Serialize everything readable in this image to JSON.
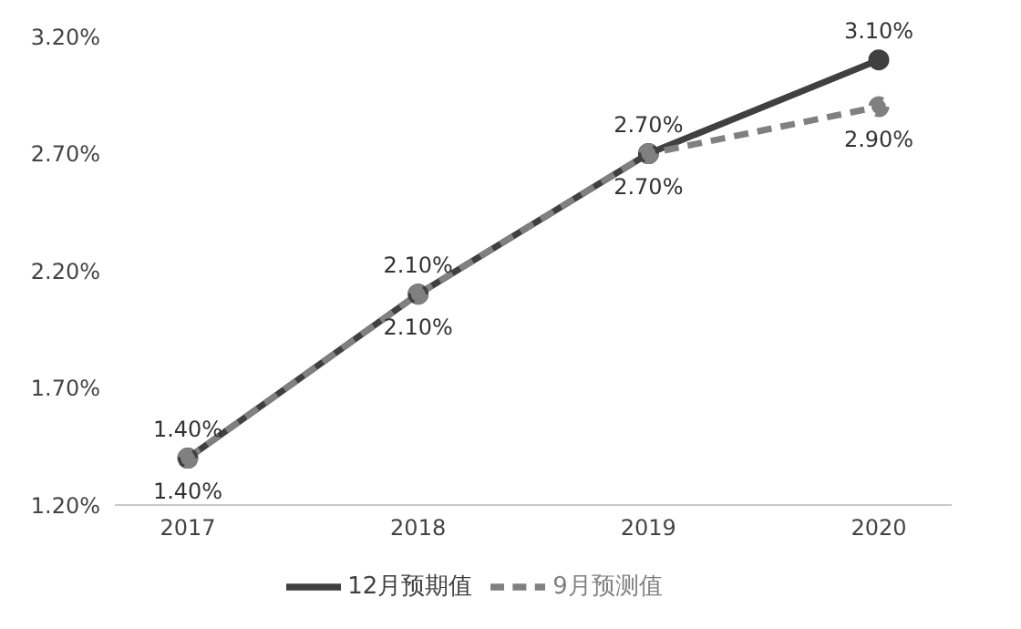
{
  "chart_data": {
    "type": "line",
    "categories": [
      "2017",
      "2018",
      "2019",
      "2020"
    ],
    "ylim": [
      1.2,
      3.2
    ],
    "yticks": [
      {
        "value": 1.2,
        "label": "1.20%"
      },
      {
        "value": 1.7,
        "label": "1.70%"
      },
      {
        "value": 2.2,
        "label": "2.20%"
      },
      {
        "value": 2.7,
        "label": "2.70%"
      },
      {
        "value": 3.2,
        "label": "3.20%"
      }
    ],
    "series": [
      {
        "name": "12月预期值",
        "color": "#404040",
        "values": [
          1.4,
          2.1,
          2.7,
          3.1
        ],
        "value_labels": [
          "1.40%",
          "2.10%",
          "2.70%",
          "3.10%"
        ],
        "line_style": "solid"
      },
      {
        "name": "9月预测值",
        "color": "#808080",
        "values": [
          1.4,
          2.1,
          2.7,
          2.9
        ],
        "value_labels": [
          "1.40%",
          "2.10%",
          "2.70%",
          "2.90%"
        ],
        "line_style": "dashed"
      }
    ],
    "grid": false,
    "legend": "bottom",
    "marker": "circle"
  }
}
